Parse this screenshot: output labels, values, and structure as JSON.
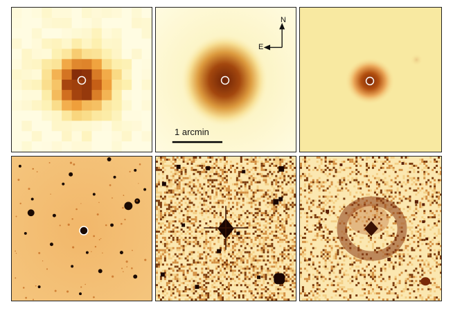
{
  "figure": {
    "compass": {
      "north": "N",
      "east": "E"
    },
    "scalebar": {
      "label": "1 arcmin"
    }
  }
}
